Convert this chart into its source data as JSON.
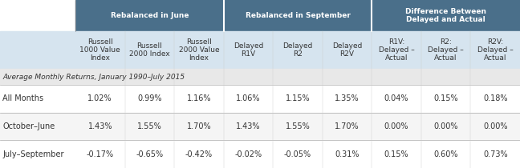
{
  "header1_text": "Rebalanced in June",
  "header2_text": "Rebalanced in September",
  "header3_text": "Difference Between\nDelayed and Actual",
  "header_bg": "#4a6f8a",
  "header_text_color": "#ffffff",
  "subheader_bg": "#d6e4ef",
  "subheader_text_color": "#333333",
  "section_label_bg": "#e8e8e8",
  "col_headers": [
    "Russell\n1000 Value\nIndex",
    "Russell\n2000 Index",
    "Russell\n2000 Value\nIndex",
    "Delayed\nR1V",
    "Delayed\nR2",
    "Delayed\nR2V",
    "R1V:\nDelayed –\nActual",
    "R2:\nDelayed –\nActual",
    "R2V:\nDelayed –\nActual"
  ],
  "section_label": "Average Monthly Returns, January 1990–July 2015",
  "row_labels": [
    "All Months",
    "October–June",
    "July–September"
  ],
  "data": [
    [
      "1.02%",
      "0.99%",
      "1.16%",
      "1.06%",
      "1.15%",
      "1.35%",
      "0.04%",
      "0.15%",
      "0.18%"
    ],
    [
      "1.43%",
      "1.55%",
      "1.70%",
      "1.43%",
      "1.55%",
      "1.70%",
      "0.00%",
      "0.00%",
      "0.00%"
    ],
    [
      "-0.17%",
      "-0.65%",
      "-0.42%",
      "-0.02%",
      "-0.05%",
      "0.31%",
      "0.15%",
      "0.60%",
      "0.73%"
    ]
  ],
  "divider_color": "#aaaaaa",
  "font_size_header": 6.5,
  "font_size_data": 7.0,
  "font_size_label": 6.5
}
